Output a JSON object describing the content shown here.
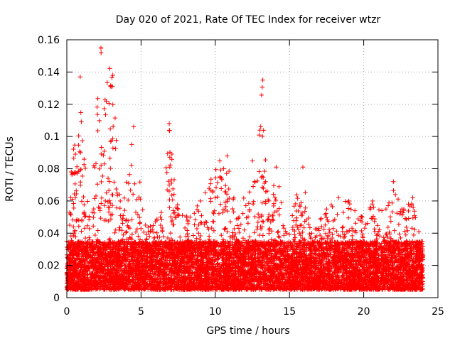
{
  "chart_data": {
    "type": "scatter",
    "title": "Day 020 of 2021, Rate Of TEC Index for receiver wtzr",
    "xlabel": "GPS time / hours",
    "ylabel": "ROTI / TECUs",
    "xlim": [
      0,
      25
    ],
    "ylim": [
      0,
      0.16
    ],
    "xticks": [
      0,
      5,
      10,
      15,
      20,
      25
    ],
    "xtick_labels": [
      "0",
      "5",
      "10",
      "15",
      "20",
      "25"
    ],
    "yticks": [
      0,
      0.02,
      0.04,
      0.06,
      0.08,
      0.1,
      0.12,
      0.14,
      0.16
    ],
    "ytick_labels": [
      "0",
      "0.02",
      "0.04",
      "0.06",
      "0.08",
      "0.1",
      "0.12",
      "0.14",
      "0.16"
    ],
    "grid": true,
    "marker": "+",
    "color": "#ff0000",
    "series": [
      {
        "name": "ROTI",
        "description_range_x": [
          0,
          24
        ],
        "baseline_band": [
          0.005,
          0.035
        ],
        "upper_envelope": [
          [
            0.0,
            0.035
          ],
          [
            0.3,
            0.078
          ],
          [
            0.9,
            0.137
          ],
          [
            1.5,
            0.05
          ],
          [
            2.3,
            0.155
          ],
          [
            3.1,
            0.138
          ],
          [
            3.6,
            0.06
          ],
          [
            4.5,
            0.106
          ],
          [
            5.3,
            0.045
          ],
          [
            6.3,
            0.05
          ],
          [
            6.9,
            0.108
          ],
          [
            7.5,
            0.055
          ],
          [
            8.3,
            0.05
          ],
          [
            9.0,
            0.06
          ],
          [
            10.3,
            0.085
          ],
          [
            10.8,
            0.088
          ],
          [
            11.6,
            0.05
          ],
          [
            12.5,
            0.085
          ],
          [
            13.2,
            0.135
          ],
          [
            13.6,
            0.06
          ],
          [
            14.1,
            0.081
          ],
          [
            14.8,
            0.04
          ],
          [
            15.9,
            0.081
          ],
          [
            16.5,
            0.04
          ],
          [
            17.5,
            0.055
          ],
          [
            18.3,
            0.062
          ],
          [
            19.0,
            0.06
          ],
          [
            19.9,
            0.05
          ],
          [
            20.6,
            0.06
          ],
          [
            21.5,
            0.055
          ],
          [
            22.0,
            0.072
          ],
          [
            22.7,
            0.055
          ],
          [
            23.3,
            0.062
          ],
          [
            23.9,
            0.035
          ]
        ]
      }
    ]
  }
}
